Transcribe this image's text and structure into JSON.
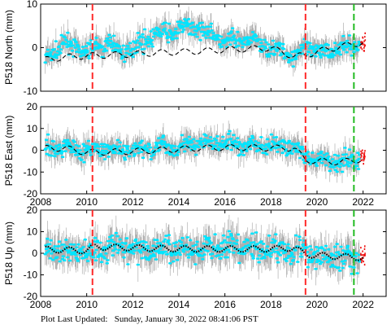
{
  "chart_data": [
    {
      "type": "scatter",
      "ylabel": "P518 North (mm)",
      "ylim": [
        -10,
        10
      ],
      "yticks": [
        -10,
        0,
        10
      ],
      "xlim": [
        2008,
        2023
      ],
      "xticks": [
        2008,
        2010,
        2012,
        2014,
        2016,
        2018,
        2020,
        2022
      ],
      "events": [
        {
          "x": 2010.25,
          "color": "#ff2a2a"
        },
        {
          "x": 2019.5,
          "color": "#ff2a2a"
        },
        {
          "x": 2021.6,
          "color": "#22bb22"
        }
      ],
      "series": [
        {
          "name": "",
          "color": "#00e5ff",
          "style": "daily",
          "x": [
            2008.2,
            2009,
            2010,
            2011,
            2011.5,
            2012,
            2013,
            2014,
            2014.6,
            2015.5,
            2016,
            2017,
            2018,
            2019,
            2019.5,
            2020,
            2021,
            2021.8,
            2022
          ],
          "values": [
            -3,
            1,
            -1,
            1,
            -1,
            0,
            3,
            4,
            5,
            3,
            1,
            2,
            0,
            -2,
            0,
            -1,
            0,
            0.5,
            1
          ]
        },
        {
          "name": "",
          "color": "#000000",
          "style": "model-dashed",
          "x": [
            2008.2,
            2009,
            2010,
            2011,
            2012,
            2013,
            2014,
            2015,
            2016,
            2017,
            2018,
            2019,
            2019.5,
            2020,
            2021,
            2022
          ],
          "values": [
            -2.8,
            -2.2,
            -1.9,
            -1.7,
            -1.5,
            -1.2,
            -1.0,
            -0.8,
            -0.5,
            -0.3,
            -0.1,
            -2.0,
            -1.8,
            -0.9,
            0.2,
            1.2
          ]
        }
      ]
    },
    {
      "type": "scatter",
      "ylabel": "P518 East (mm)",
      "ylim": [
        -20,
        20
      ],
      "yticks": [
        -20,
        -10,
        0,
        10,
        20
      ],
      "xlim": [
        2008,
        2023
      ],
      "xticks": [
        2008,
        2010,
        2012,
        2014,
        2016,
        2018,
        2020,
        2022
      ],
      "xticklabels": [
        "2008",
        "2010",
        "2012",
        "2014",
        "2016",
        "2018",
        "2020",
        "2022"
      ],
      "events": [
        {
          "x": 2010.25,
          "color": "#ff2a2a"
        },
        {
          "x": 2019.5,
          "color": "#ff2a2a"
        },
        {
          "x": 2021.6,
          "color": "#22bb22"
        }
      ],
      "series": [
        {
          "name": "",
          "color": "#00e5ff",
          "style": "daily",
          "x": [
            2008.2,
            2009,
            2010,
            2011,
            2012,
            2013,
            2014,
            2015,
            2016,
            2017,
            2018,
            2019,
            2019.5,
            2020,
            2021,
            2022
          ],
          "values": [
            1,
            2,
            0,
            0,
            0,
            1,
            2,
            3,
            3,
            2,
            2,
            2,
            -4,
            -5,
            -5,
            -3
          ]
        },
        {
          "name": "",
          "color": "#000000",
          "style": "model-dashed",
          "x": [
            2008.2,
            2009,
            2010,
            2011,
            2012,
            2013,
            2014,
            2015,
            2016,
            2017,
            2018,
            2019,
            2019.5,
            2020,
            2021,
            2022
          ],
          "values": [
            0.8,
            1.0,
            -1.0,
            -0.8,
            -0.5,
            0.0,
            0.5,
            1.0,
            1.2,
            1.2,
            1.0,
            1.0,
            -4.5,
            -5.0,
            -5.5,
            -4.0
          ]
        }
      ]
    },
    {
      "type": "scatter",
      "ylabel": "P518 Up (mm)",
      "ylim": [
        -20,
        20
      ],
      "yticks": [
        -20,
        -10,
        0,
        10,
        20
      ],
      "xlim": [
        2008,
        2023
      ],
      "xticks": [
        2008,
        2010,
        2012,
        2014,
        2016,
        2018,
        2020,
        2022
      ],
      "xticklabels": [
        "2008",
        "2010",
        "2012",
        "2014",
        "2016",
        "2018",
        "2020",
        "2022"
      ],
      "events": [
        {
          "x": 2010.25,
          "color": "#ff2a2a"
        },
        {
          "x": 2019.5,
          "color": "#ff2a2a"
        },
        {
          "x": 2021.6,
          "color": "#22bb22"
        }
      ],
      "series": [
        {
          "name": "",
          "color": "#00e5ff",
          "style": "daily",
          "x": [
            2008.2,
            2009,
            2010,
            2011,
            2012,
            2013,
            2014,
            2015,
            2016,
            2017,
            2018,
            2019,
            2019.5,
            2020,
            2021,
            2022
          ],
          "values": [
            2,
            1,
            0,
            3,
            2,
            2,
            2,
            2,
            3,
            2,
            2,
            2,
            0,
            -1,
            -2,
            -2
          ]
        },
        {
          "name": "",
          "color": "#000000",
          "style": "model-dotted",
          "x": [
            2008.2,
            2009,
            2010,
            2010.3,
            2011,
            2012,
            2013,
            2014,
            2015,
            2016,
            2017,
            2018,
            2019,
            2019.5,
            2020,
            2021,
            2022
          ],
          "values": [
            1.8,
            1.5,
            1.2,
            3.0,
            2.8,
            2.5,
            2.3,
            2.0,
            2.0,
            2.0,
            2.0,
            2.0,
            2.5,
            -0.5,
            -1.0,
            -1.5,
            -2.0
          ]
        }
      ]
    }
  ],
  "footer": {
    "label": "Plot Last Updated:",
    "timestamp": "Sunday, January 30, 2022 08:41:06 PST"
  },
  "colors": {
    "data": "#00e5ff",
    "error_bars": "#b0b0b0",
    "recent_data": "#ee1111",
    "offset_event": "#ff2a2a",
    "equipment_event": "#22bb22"
  }
}
